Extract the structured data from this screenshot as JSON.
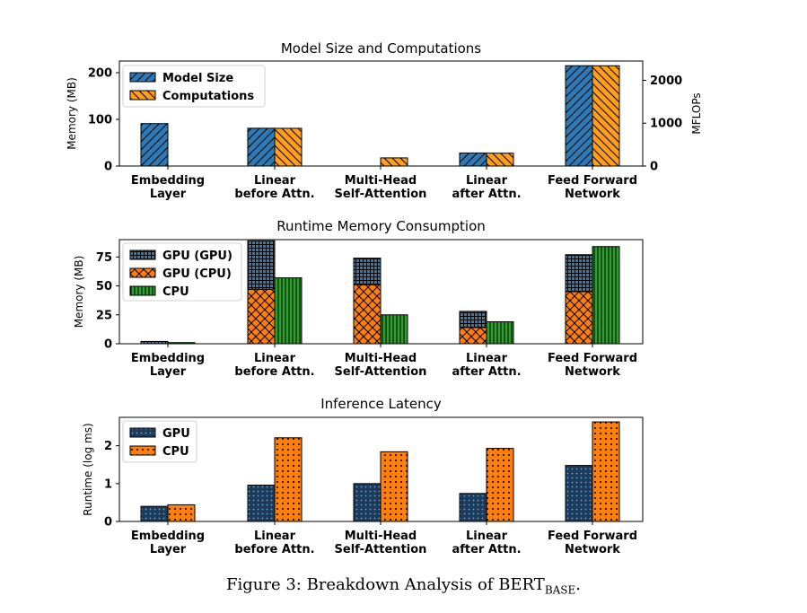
{
  "caption": {
    "prefix": "Figure 3: Breakdown Analysis of BERT",
    "subscript": "BASE",
    "suffix": "."
  },
  "colors": {
    "blue": "#2c7bb6",
    "orange": "#ff9f1c",
    "dark_orange": "#ff7f0e",
    "green": "#2ca02c",
    "navy": "#1f3b5a"
  },
  "chart_data": [
    {
      "type": "bar",
      "title": "Model Size and Computations",
      "categories": [
        [
          "Embedding",
          "Layer"
        ],
        [
          "Linear",
          "before Attn."
        ],
        [
          "Multi-Head",
          "Self-Attention"
        ],
        [
          "Linear",
          "after Attn."
        ],
        [
          "Feed Forward",
          "Network"
        ]
      ],
      "ylabel": "Memory (MB)",
      "ylim": [
        0,
        225
      ],
      "yticks": [
        0,
        100,
        200
      ],
      "y2label": "MFLOPs",
      "y2lim": [
        0,
        2450
      ],
      "y2ticks": [
        0,
        1000,
        2000
      ],
      "legend_position": "upper-left",
      "series": [
        {
          "name": "Model Size",
          "axis": "left",
          "values": [
            91,
            81,
            0,
            28,
            215
          ],
          "color": "#2c7bb6",
          "hatch": "diag-right"
        },
        {
          "name": "Computations",
          "axis": "right",
          "values": [
            0,
            880,
            190,
            300,
            2340
          ],
          "color": "#ff9f1c",
          "hatch": "diag-left"
        }
      ]
    },
    {
      "type": "bar",
      "title": "Runtime Memory Consumption",
      "categories": [
        [
          "Embedding",
          "Layer"
        ],
        [
          "Linear",
          "before Attn."
        ],
        [
          "Multi-Head",
          "Self-Attention"
        ],
        [
          "Linear",
          "after Attn."
        ],
        [
          "Feed Forward",
          "Network"
        ]
      ],
      "ylabel": "Memory (MB)",
      "ylim": [
        0,
        90
      ],
      "yticks": [
        0,
        25,
        50,
        75
      ],
      "legend_position": "upper-left",
      "series": [
        {
          "name": "GPU (GPU)",
          "values": [
            2,
            89,
            74,
            28,
            77
          ],
          "color": "#2c7bb6",
          "hatch": "grid"
        },
        {
          "name": "GPU (CPU)",
          "values": [
            0,
            47,
            51,
            14,
            45
          ],
          "color": "#ff7f0e",
          "hatch": "cross"
        },
        {
          "name": "CPU",
          "values": [
            1,
            57,
            25,
            19,
            84
          ],
          "color": "#2ca02c",
          "hatch": "vert"
        }
      ]
    },
    {
      "type": "bar",
      "title": "Inference Latency",
      "categories": [
        [
          "Embedding",
          "Layer"
        ],
        [
          "Linear",
          "before Attn."
        ],
        [
          "Multi-Head",
          "Self-Attention"
        ],
        [
          "Linear",
          "after Attn."
        ],
        [
          "Feed Forward",
          "Network"
        ]
      ],
      "ylabel": "Runtime (log ms)",
      "ylim": [
        0,
        2.75
      ],
      "yticks": [
        0,
        1,
        2
      ],
      "legend_position": "upper-left",
      "series": [
        {
          "name": "GPU",
          "values": [
            0.4,
            0.96,
            1.0,
            0.74,
            1.48
          ],
          "color": "#1f3b5a",
          "hatch": "dots-light"
        },
        {
          "name": "CPU",
          "values": [
            0.44,
            2.21,
            1.84,
            1.93,
            2.63
          ],
          "color": "#ff7f0e",
          "hatch": "dots-dark"
        }
      ]
    }
  ]
}
